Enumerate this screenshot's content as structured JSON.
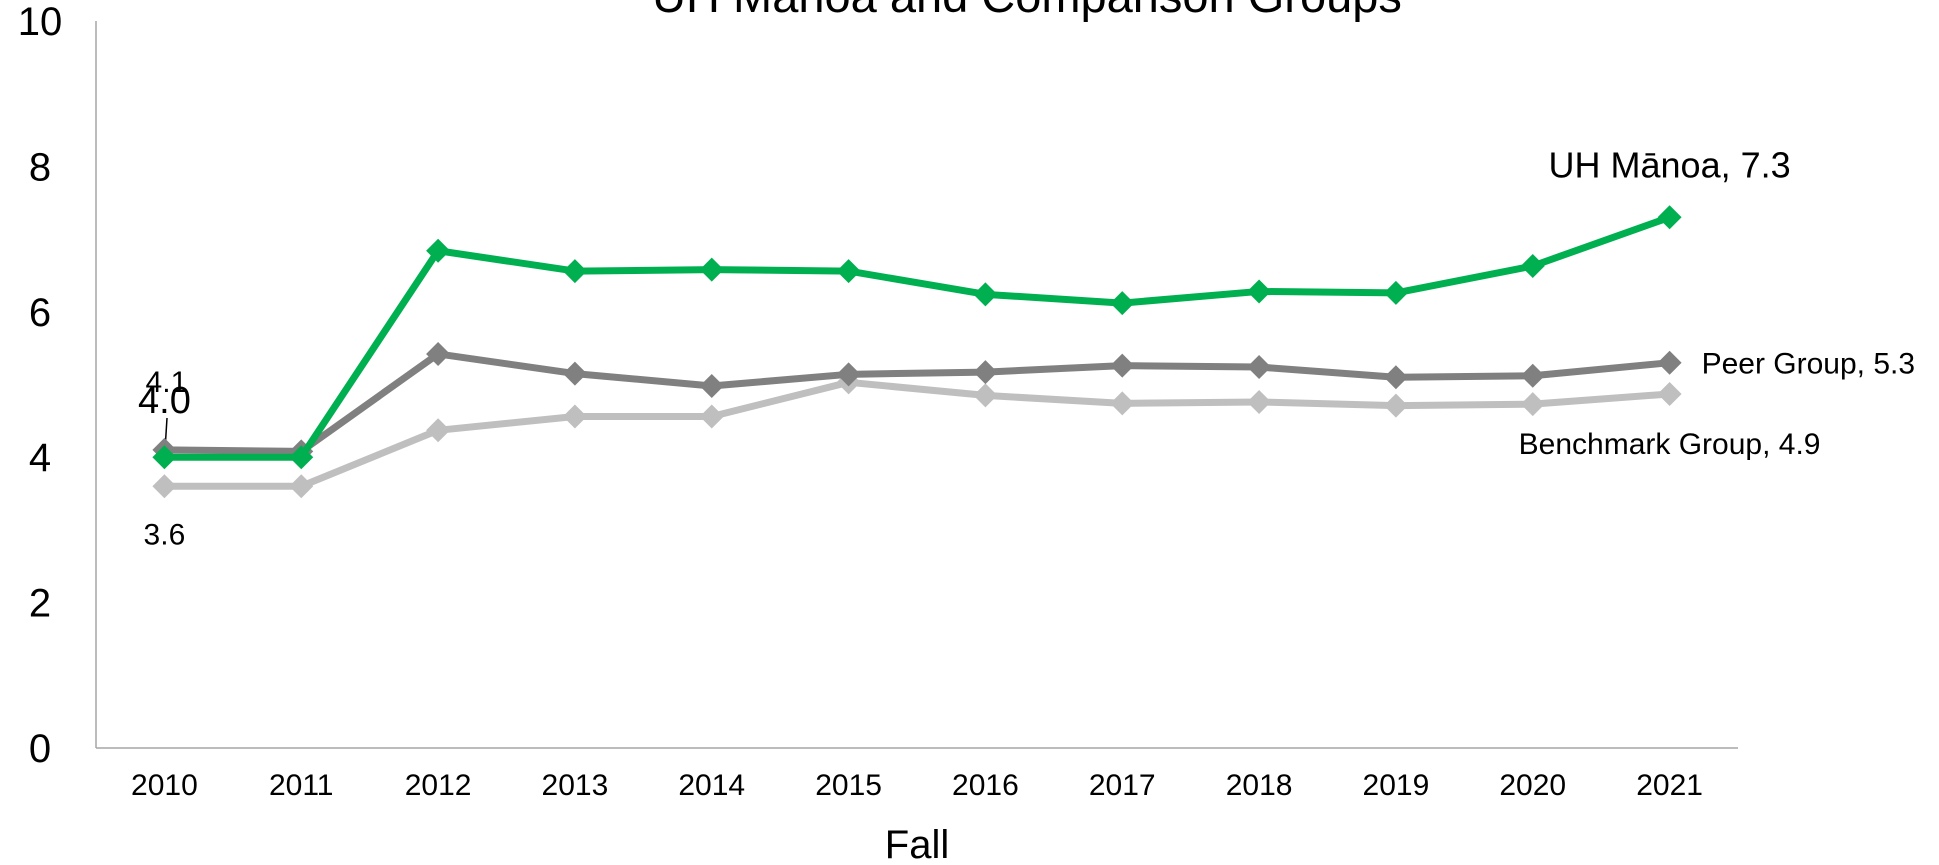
{
  "chart_data": {
    "type": "line",
    "title": "UH Mānoa and Comparison Groups",
    "x_label": "Fall",
    "categories": [
      "2010",
      "2011",
      "2012",
      "2013",
      "2014",
      "2015",
      "2016",
      "2017",
      "2018",
      "2019",
      "2020",
      "2021"
    ],
    "series": [
      {
        "color": "#00b050",
        "values": [
          4.0,
          4.0,
          6.84,
          6.56,
          6.58,
          6.56,
          6.24,
          6.12,
          6.28,
          6.26,
          6.63,
          7.3
        ],
        "value_labels": [
          "4.0",
          null,
          null,
          null,
          null,
          null,
          null,
          null,
          null,
          null,
          null,
          "UH Mānoa, 7.3"
        ]
      },
      {
        "color": "#808080",
        "values": [
          4.1,
          4.08,
          5.42,
          5.15,
          4.98,
          5.14,
          5.17,
          5.26,
          5.24,
          5.1,
          5.12,
          5.3
        ],
        "value_labels": [
          "4.1",
          null,
          null,
          null,
          null,
          null,
          null,
          null,
          null,
          null,
          null,
          "Peer Group, 5.3"
        ]
      },
      {
        "color": "#bfbfbf",
        "values": [
          3.6,
          3.6,
          4.37,
          4.56,
          4.56,
          5.03,
          4.85,
          4.74,
          4.76,
          4.71,
          4.73,
          4.87
        ],
        "value_labels": [
          "3.6",
          null,
          null,
          null,
          null,
          null,
          null,
          null,
          null,
          null,
          null,
          "Benchmark Group, 4.9"
        ]
      }
    ],
    "ylim": [
      0,
      10
    ],
    "yticks": [
      0,
      2,
      4,
      6,
      8,
      10
    ],
    "grid": false
  }
}
